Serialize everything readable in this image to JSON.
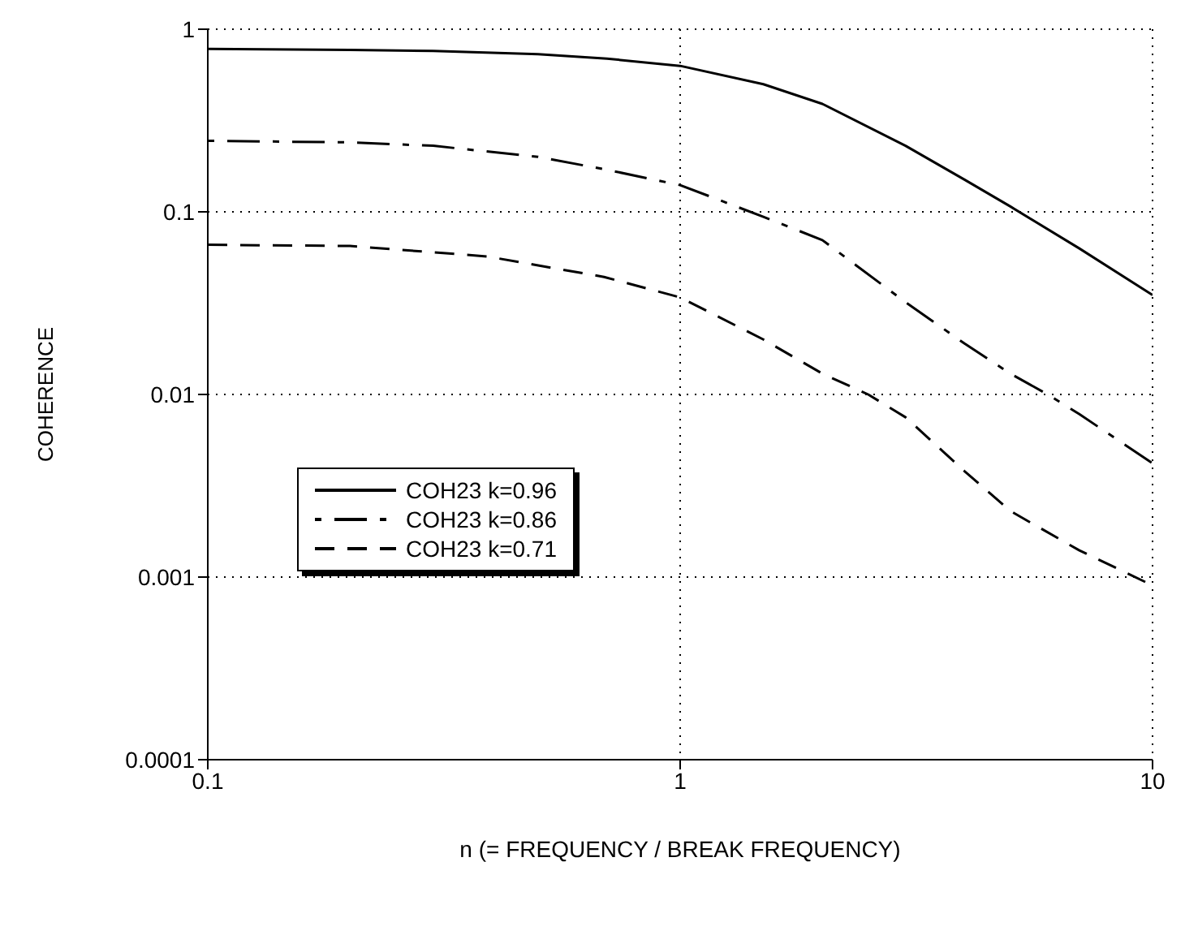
{
  "chart_data": {
    "type": "line",
    "xlabel": "n   (= FREQUENCY / BREAK FREQUENCY)",
    "ylabel": "COHERENCE",
    "log": "xy",
    "xlim": [
      0.1,
      10
    ],
    "xticks": [
      0.1,
      1,
      10
    ],
    "ylim": [
      0.0001,
      1
    ],
    "yticks": [
      0.0001,
      0.001,
      0.01,
      0.1,
      1
    ],
    "grid": true,
    "legend": "left",
    "series": [
      {
        "name": "COH23 k=0.96",
        "color": "#000000",
        "line_style": "solid",
        "x": [
          0.1,
          0.2,
          0.3,
          0.5,
          0.7,
          1,
          1.5,
          2,
          3,
          4,
          5,
          7,
          10
        ],
        "values": [
          0.78,
          0.77,
          0.76,
          0.73,
          0.69,
          0.63,
          0.5,
          0.39,
          0.23,
          0.15,
          0.107,
          0.063,
          0.035
        ]
      },
      {
        "name": "COH23 k=0.86",
        "color": "#000000",
        "line_style": "dashdot",
        "x": [
          0.1,
          0.2,
          0.3,
          0.5,
          0.7,
          1,
          1.5,
          2,
          3,
          4,
          5,
          6,
          7,
          10
        ],
        "values": [
          0.245,
          0.24,
          0.23,
          0.2,
          0.17,
          0.14,
          0.094,
          0.07,
          0.032,
          0.019,
          0.013,
          0.01,
          0.0078,
          0.0042
        ]
      },
      {
        "name": "COH23 k=0.71",
        "color": "#000000",
        "line_style": "dashed",
        "x": [
          0.1,
          0.2,
          0.39,
          0.69,
          1,
          1.5,
          2,
          2.5,
          3,
          4,
          5,
          7,
          10
        ],
        "values": [
          0.066,
          0.065,
          0.057,
          0.044,
          0.034,
          0.02,
          0.013,
          0.01,
          0.0075,
          0.0038,
          0.0023,
          0.0014,
          0.0009
        ]
      }
    ]
  }
}
